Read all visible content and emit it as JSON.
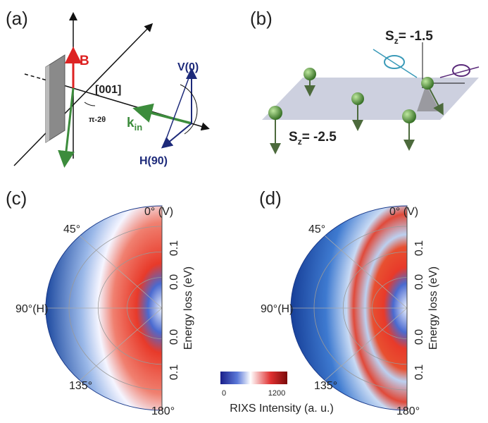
{
  "panel_a": {
    "label": "(a)",
    "field": "B",
    "direction": "[001]",
    "angle": "π-2θ",
    "wavevector": {
      "main": "k",
      "sub": "in"
    },
    "pol_v": "V(0)",
    "pol_h": "H(90)"
  },
  "panel_b": {
    "label": "(b)",
    "spin_top": {
      "main": "S",
      "sub": "z",
      "rest": "= -1.5"
    },
    "spin_bottom": {
      "main": "S",
      "sub": "z",
      "rest": "= -2.5"
    }
  },
  "panel_c": {
    "label": "(c)",
    "angles": [
      "0° (V)",
      "45°",
      "90°(H)",
      "135°",
      "180°"
    ],
    "energy_ticks": [
      "0.1",
      "0.0",
      "0.0",
      "0.1"
    ],
    "energy_title": "Energy loss (eV)"
  },
  "panel_d": {
    "label": "(d)",
    "angles": [
      "0° (V)",
      "45°",
      "90°(H)",
      "135°",
      "180°"
    ],
    "energy_ticks": [
      "0.1",
      "0.0",
      "0.0",
      "0.1"
    ],
    "energy_title": "Energy loss (eV)"
  },
  "colorbar": {
    "min": "0",
    "max": "1200",
    "title": "RIXS Intensity (a. u.)"
  }
}
